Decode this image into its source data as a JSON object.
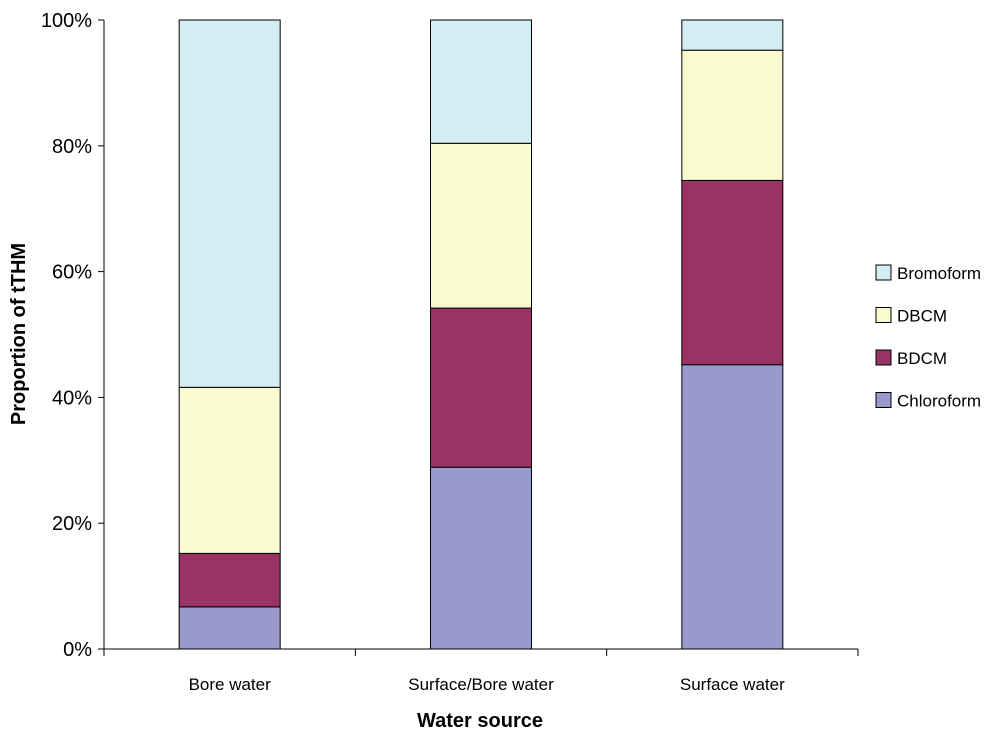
{
  "chart_data": {
    "type": "bar",
    "stacked": true,
    "percent": true,
    "categories": [
      "Bore water",
      "Surface/Bore water",
      "Surface water"
    ],
    "series": [
      {
        "name": "Chloroform",
        "values": [
          6.7,
          28.9,
          45.2
        ],
        "color": "#9999cc"
      },
      {
        "name": "BDCM",
        "values": [
          8.5,
          25.3,
          29.3
        ],
        "color": "#993366"
      },
      {
        "name": "DBCM",
        "values": [
          26.4,
          26.2,
          20.7
        ],
        "color": "#fafad0"
      },
      {
        "name": "Bromoform",
        "values": [
          58.4,
          19.6,
          4.8
        ],
        "color": "#d4edf3"
      }
    ],
    "xlabel": "Water source",
    "ylabel": "Proportion of tTHM",
    "ylim": [
      0,
      100
    ],
    "yticks": [
      "0%",
      "20%",
      "40%",
      "60%",
      "80%",
      "100%"
    ],
    "legend_order": [
      "Bromoform",
      "DBCM",
      "BDCM",
      "Chloroform"
    ],
    "legend_position": "right",
    "grid": false
  }
}
